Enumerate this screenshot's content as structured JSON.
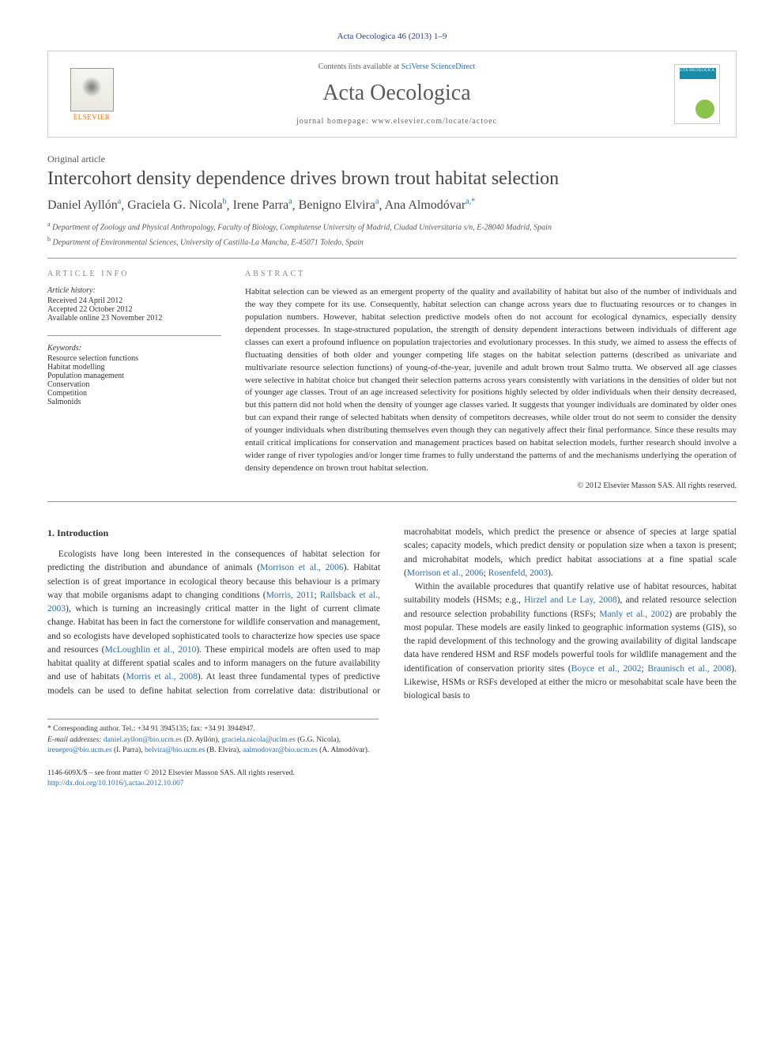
{
  "citation": "Acta Oecologica 46 (2013) 1–9",
  "banner": {
    "elsevier": "ELSEVIER",
    "contents_prefix": "Contents lists available at ",
    "contents_link": "SciVerse ScienceDirect",
    "journal_name": "Acta Oecologica",
    "homepage_prefix": "journal homepage: ",
    "homepage_url": "www.elsevier.com/locate/actoec",
    "cover_label": "ACTA OECOLOGICA"
  },
  "article": {
    "type": "Original article",
    "title": "Intercohort density dependence drives brown trout habitat selection",
    "authors": [
      {
        "name": "Daniel Ayllón",
        "affil": "a"
      },
      {
        "name": "Graciela G. Nicola",
        "affil": "b"
      },
      {
        "name": "Irene Parra",
        "affil": "a"
      },
      {
        "name": "Benigno Elvira",
        "affil": "a"
      },
      {
        "name": "Ana Almodóvar",
        "affil": "a,*"
      }
    ],
    "affiliations": [
      {
        "sup": "a",
        "text": "Department of Zoology and Physical Anthropology, Faculty of Biology, Complutense University of Madrid, Ciudad Universitaria s/n, E-28040 Madrid, Spain"
      },
      {
        "sup": "b",
        "text": "Department of Environmental Sciences, University of Castilla-La Mancha, E-45071 Toledo, Spain"
      }
    ]
  },
  "info": {
    "heading": "ARTICLE INFO",
    "history_label": "Article history:",
    "received": "Received 24 April 2012",
    "accepted": "Accepted 22 October 2012",
    "online": "Available online 23 November 2012",
    "keywords_label": "Keywords:",
    "keywords": [
      "Resource selection functions",
      "Habitat modelling",
      "Population management",
      "Conservation",
      "Competition",
      "Salmonids"
    ]
  },
  "abstract": {
    "heading": "ABSTRACT",
    "text": "Habitat selection can be viewed as an emergent property of the quality and availability of habitat but also of the number of individuals and the way they compete for its use. Consequently, habitat selection can change across years due to fluctuating resources or to changes in population numbers. However, habitat selection predictive models often do not account for ecological dynamics, especially density dependent processes. In stage-structured population, the strength of density dependent interactions between individuals of different age classes can exert a profound influence on population trajectories and evolutionary processes. In this study, we aimed to assess the effects of fluctuating densities of both older and younger competing life stages on the habitat selection patterns (described as univariate and multivariate resource selection functions) of young-of-the-year, juvenile and adult brown trout Salmo trutta. We observed all age classes were selective in habitat choice but changed their selection patterns across years consistently with variations in the densities of older but not of younger age classes. Trout of an age increased selectivity for positions highly selected by older individuals when their density decreased, but this pattern did not hold when the density of younger age classes varied. It suggests that younger individuals are dominated by older ones but can expand their range of selected habitats when density of competitors decreases, while older trout do not seem to consider the density of younger individuals when distributing themselves even though they can negatively affect their final performance. Since these results may entail critical implications for conservation and management practices based on habitat selection models, further research should involve a wider range of river typologies and/or longer time frames to fully understand the patterns of and the mechanisms underlying the operation of density dependence on brown trout habitat selection.",
    "copyright": "© 2012 Elsevier Masson SAS. All rights reserved."
  },
  "body": {
    "section_heading": "1. Introduction",
    "p1_a": "Ecologists have long been interested in the consequences of habitat selection for predicting the distribution and abundance of animals (",
    "p1_ref1": "Morrison et al., 2006",
    "p1_b": "). Habitat selection is of great importance in ecological theory because this behaviour is a primary way that mobile organisms adapt to changing conditions (",
    "p1_ref2": "Morris, 2011",
    "p1_c": "; ",
    "p1_ref3": "Railsback et al., 2003",
    "p1_d": "), which is turning an increasingly critical matter in the light of current climate change. Habitat has been in fact the cornerstone for wildlife conservation and management, and so ecologists have developed sophisticated tools to characterize how species use space and resources (",
    "p1_ref4": "McLoughlin et al., 2010",
    "p1_e": "). These empirical models are often used to map habitat quality at different spatial scales and to inform managers on the future availability and use of habitats (",
    "p1_ref5": "Morris et al., 2008",
    "p1_f": "). At least three fundamental types of predictive models can be used to define habitat selection from correlative data: distributional or macrohabitat models, which predict the presence or absence of species at large spatial scales; capacity models, which predict density or population size when a taxon is present; and microhabitat models, which predict habitat associations at a fine spatial scale (",
    "p1_ref6": "Morrison et al., 2006",
    "p1_g": "; ",
    "p1_ref7": "Rosenfeld, 2003",
    "p1_h": ").",
    "p2_a": "Within the available procedures that quantify relative use of habitat resources, habitat suitability models (HSMs; e.g., ",
    "p2_ref1": "Hirzel and Le Lay, 2008",
    "p2_b": "), and related resource selection and resource selection probability functions (RSFs; ",
    "p2_ref2": "Manly et al., 2002",
    "p2_c": ") are probably the most popular. These models are easily linked to geographic information systems (GIS), so the rapid development of this technology and the growing availability of digital landscape data have rendered HSM and RSF models powerful tools for wildlife management and the identification of conservation priority sites (",
    "p2_ref3": "Boyce et al., 2002",
    "p2_d": "; ",
    "p2_ref4": "Braunisch et al., 2008",
    "p2_e": "). Likewise, HSMs or RSFs developed at either the micro or mesohabitat scale have been the biological basis to"
  },
  "footer": {
    "corr_label": "* Corresponding author. Tel.: +34 91 3945135; fax: +34 91 3944947.",
    "email_label": "E-mail addresses:",
    "emails": [
      {
        "addr": "daniel.ayllon@bio.ucm.es",
        "name": "(D. Ayllón)"
      },
      {
        "addr": "graciela.nicola@uclm.es",
        "name": "(G.G. Nicola)"
      },
      {
        "addr": "irenepro@bio.ucm.es",
        "name": "(I. Parra)"
      },
      {
        "addr": "belvira@bio.ucm.es",
        "name": "(B. Elvira)"
      },
      {
        "addr": "aalmodovar@bio.ucm.es",
        "name": "(A. Almodóvar)"
      }
    ]
  },
  "doi": {
    "front_matter": "1146-609X/$ – see front matter © 2012 Elsevier Masson SAS. All rights reserved.",
    "link": "http://dx.doi.org/10.1016/j.actao.2012.10.007"
  }
}
